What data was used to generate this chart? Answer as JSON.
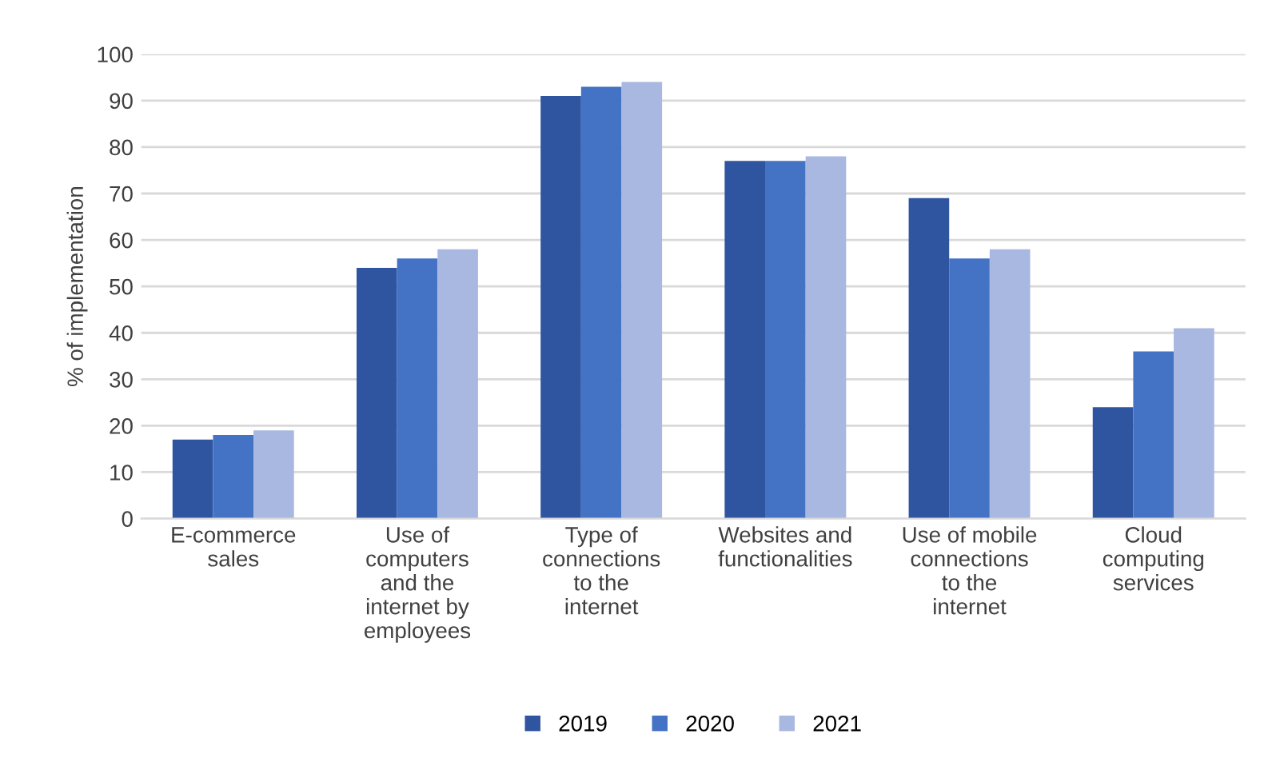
{
  "chart_data": {
    "type": "bar",
    "ylabel": "% of implementation",
    "categories": [
      "E-commerce\nsales",
      "Use of\ncomputers\nand the\ninternet by\nemployees",
      "Type of\nconnections\nto the\ninternet",
      "Websites and\nfunctionalities",
      "Use of mobile\nconnections\nto the\ninternet",
      "Cloud\ncomputing\nservices"
    ],
    "series": [
      {
        "name": "2019",
        "color": "#2f55a0",
        "values": [
          17,
          54,
          91,
          77,
          69,
          24
        ]
      },
      {
        "name": "2020",
        "color": "#4472c4",
        "values": [
          18,
          56,
          93,
          77,
          56,
          36
        ]
      },
      {
        "name": "2021",
        "color": "#a9b8e0",
        "values": [
          19,
          58,
          94,
          78,
          58,
          41
        ]
      }
    ],
    "ylim": [
      0,
      100
    ],
    "yticks": [
      0,
      10,
      20,
      30,
      40,
      50,
      60,
      70,
      80,
      90,
      100
    ],
    "grid": "y",
    "legend": "bottom"
  }
}
